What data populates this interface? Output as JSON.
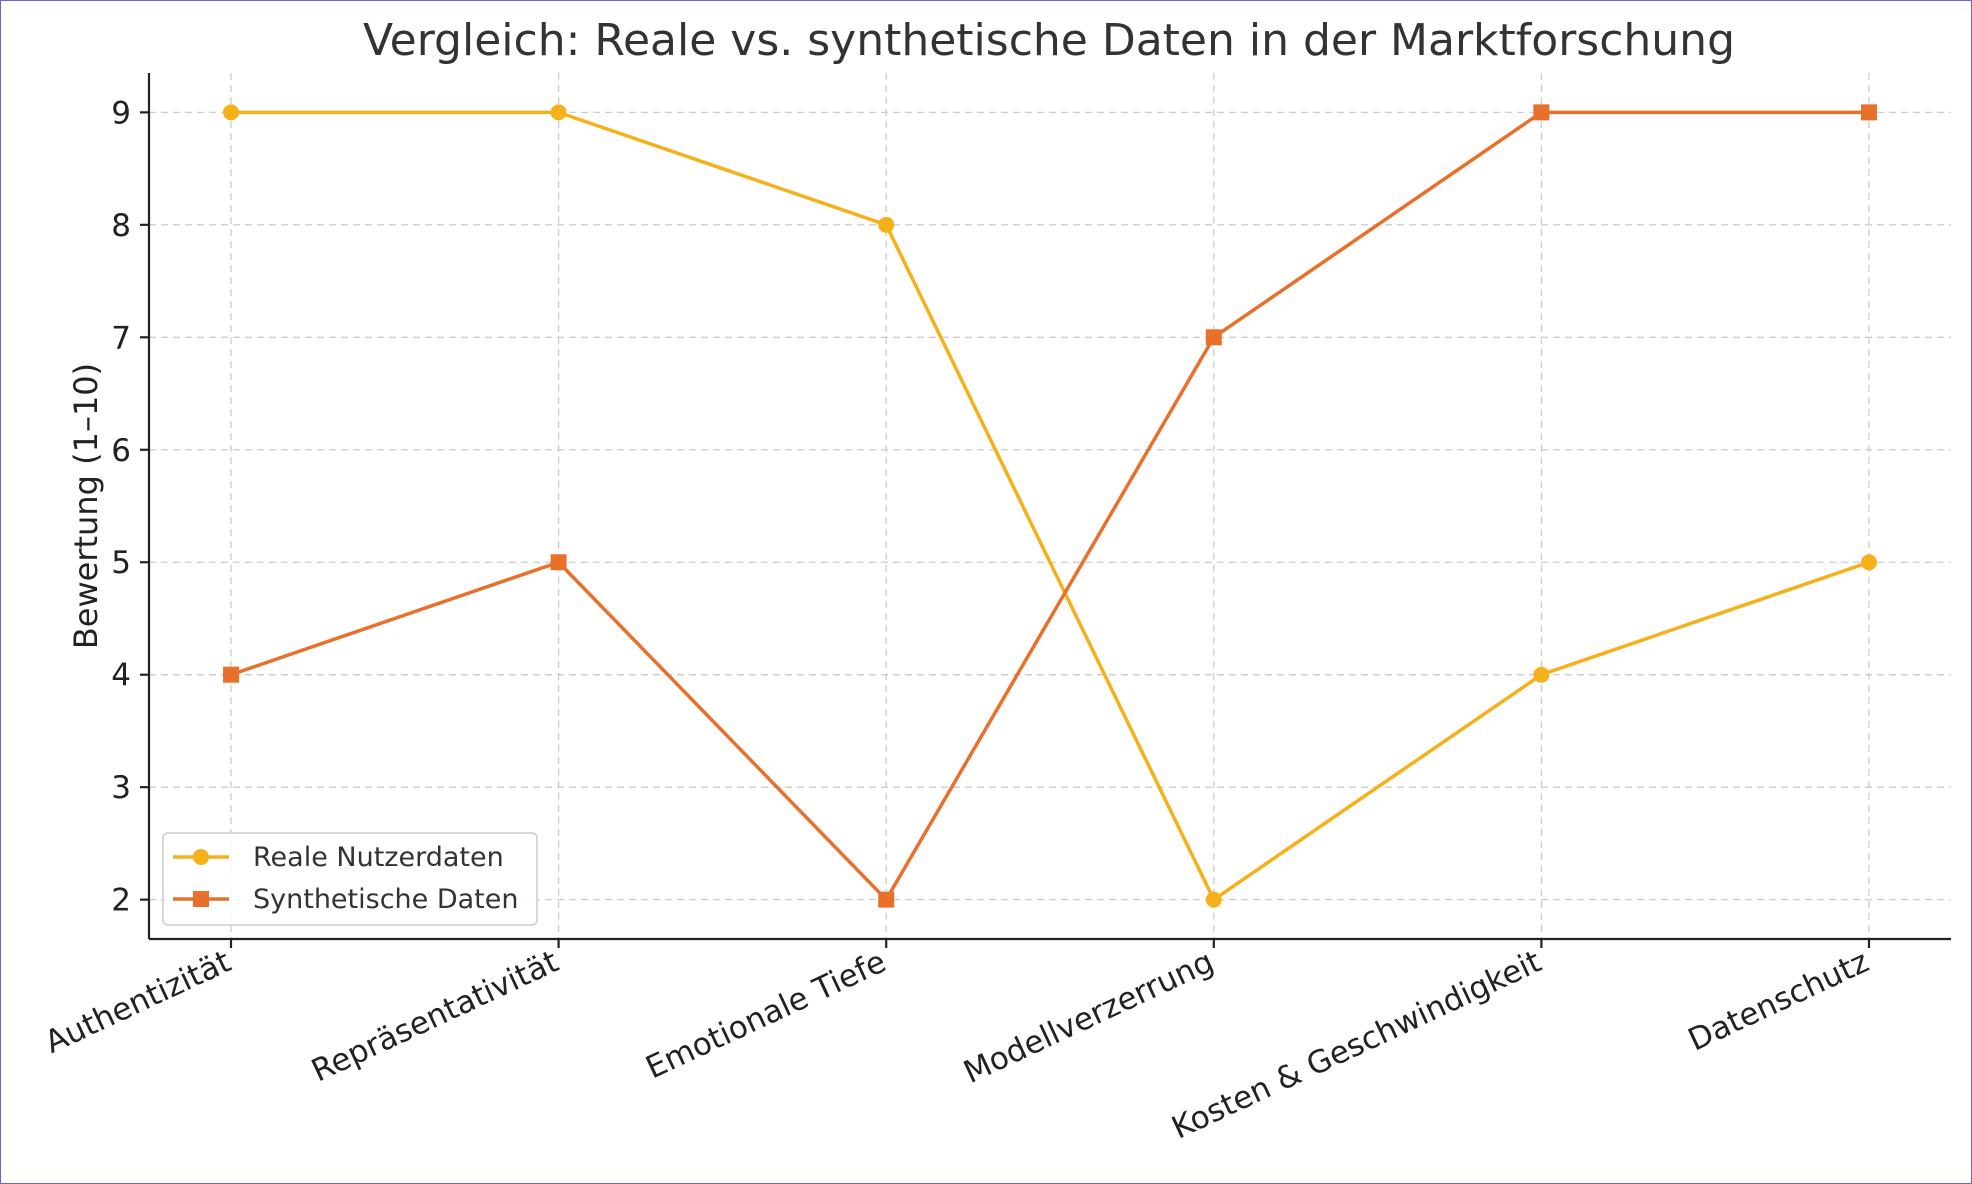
{
  "chart_data": {
    "type": "line",
    "title": "Vergleich: Reale vs. synthetische Daten in der Marktforschung",
    "xlabel": "",
    "ylabel": "Bewertung (1–10)",
    "categories": [
      "Authentizität",
      "Repräsentativität",
      "Emotionale Tiefe",
      "Modellverzerrung",
      "Kosten & Geschwindigkeit",
      "Datenschutz"
    ],
    "yticks": [
      2,
      3,
      4,
      5,
      6,
      7,
      8,
      9
    ],
    "ylim": [
      1.65,
      9.35
    ],
    "grid": true,
    "legend_position": "lower-left",
    "series": [
      {
        "name": "Reale Nutzerdaten",
        "values": [
          9,
          9,
          8,
          2,
          4,
          5
        ],
        "color": "#f5b01a",
        "marker": "circle"
      },
      {
        "name": "Synthetische Daten",
        "values": [
          4,
          5,
          2,
          7,
          9,
          9
        ],
        "color": "#e8702a",
        "marker": "square"
      }
    ]
  }
}
